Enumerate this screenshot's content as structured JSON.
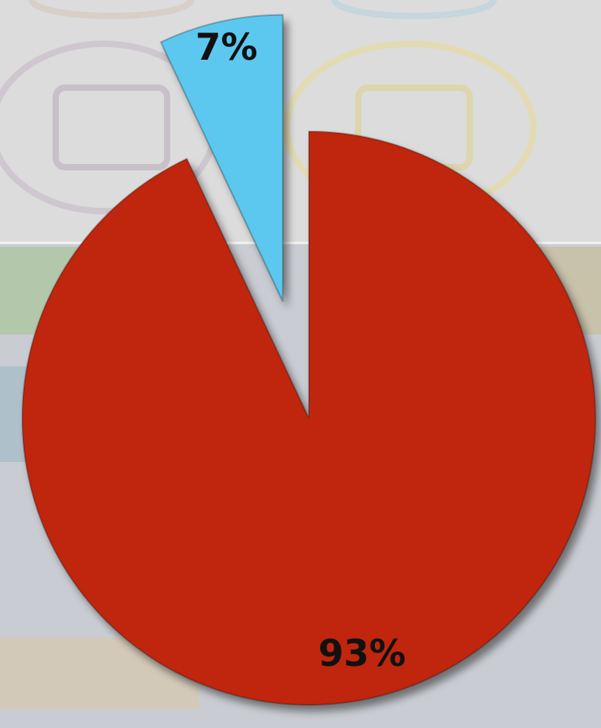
{
  "chart_data": {
    "type": "pie",
    "values": [
      93,
      7
    ],
    "value_labels": [
      "93%",
      "7%"
    ],
    "colors": [
      "#c0260f",
      "#5bc8f0"
    ],
    "exploded": [
      false,
      true
    ]
  }
}
